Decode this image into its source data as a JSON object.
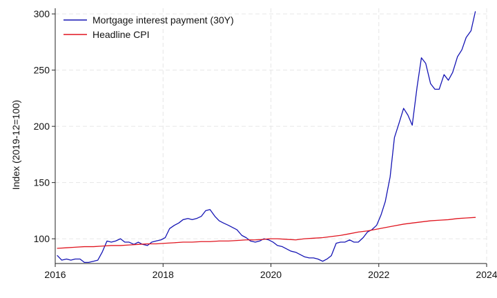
{
  "chart_data": {
    "type": "line",
    "title": "",
    "xlabel": "",
    "ylabel": "Index (2019-12=100)",
    "xlim": [
      2016.0,
      2024.0
    ],
    "ylim": [
      78,
      305
    ],
    "x_ticks": [
      2016,
      2018,
      2020,
      2022,
      2024
    ],
    "x_tick_labels": [
      "2016",
      "2018",
      "2020",
      "2022",
      "2024"
    ],
    "y_ticks": [
      100,
      150,
      200,
      250,
      300
    ],
    "y_tick_labels": [
      "100",
      "150",
      "200",
      "250",
      "300"
    ],
    "grid": true,
    "legend_position": "top-left",
    "series": [
      {
        "name": "Mortgage interest payment (30Y)",
        "color": "#1414b4",
        "x": [
          2016.04,
          2016.12,
          2016.21,
          2016.29,
          2016.37,
          2016.46,
          2016.54,
          2016.62,
          2016.71,
          2016.79,
          2016.87,
          2016.96,
          2017.04,
          2017.12,
          2017.21,
          2017.29,
          2017.37,
          2017.46,
          2017.54,
          2017.62,
          2017.71,
          2017.79,
          2017.87,
          2017.96,
          2018.04,
          2018.12,
          2018.21,
          2018.29,
          2018.37,
          2018.46,
          2018.54,
          2018.62,
          2018.71,
          2018.79,
          2018.87,
          2018.96,
          2019.04,
          2019.12,
          2019.21,
          2019.29,
          2019.37,
          2019.46,
          2019.54,
          2019.62,
          2019.71,
          2019.79,
          2019.87,
          2019.96,
          2020.04,
          2020.12,
          2020.21,
          2020.29,
          2020.37,
          2020.46,
          2020.54,
          2020.62,
          2020.71,
          2020.79,
          2020.87,
          2020.96,
          2021.04,
          2021.12,
          2021.21,
          2021.29,
          2021.37,
          2021.46,
          2021.54,
          2021.62,
          2021.71,
          2021.79,
          2021.87,
          2021.96,
          2022.04,
          2022.12,
          2022.21,
          2022.29,
          2022.37,
          2022.46,
          2022.54,
          2022.62,
          2022.71,
          2022.79,
          2022.87,
          2022.96,
          2023.04,
          2023.12,
          2023.21,
          2023.29,
          2023.37,
          2023.46,
          2023.54,
          2023.62,
          2023.71,
          2023.79
        ],
        "y": [
          85,
          81,
          82,
          81,
          82,
          82,
          79,
          79,
          80,
          81,
          88,
          98,
          97,
          98,
          100,
          97,
          97,
          95,
          97,
          95,
          94,
          97,
          98,
          99,
          101,
          109,
          112,
          114,
          117,
          118,
          117,
          118,
          120,
          125,
          126,
          120,
          116,
          114,
          112,
          110,
          108,
          103,
          101,
          98,
          97,
          98,
          100,
          99,
          97,
          94,
          93,
          91,
          89,
          88,
          86,
          84,
          83,
          83,
          82,
          80,
          82,
          85,
          96,
          97,
          97,
          99,
          97,
          97,
          101,
          106,
          108,
          112,
          121,
          133,
          155,
          190,
          202,
          216,
          210,
          201,
          235,
          261,
          256,
          238,
          233,
          233,
          246,
          241,
          248,
          262,
          268,
          279,
          285,
          302
        ]
      },
      {
        "name": "Headline CPI",
        "color": "#e0141e",
        "x": [
          2016.04,
          2016.21,
          2016.37,
          2016.54,
          2016.71,
          2016.87,
          2017.04,
          2017.21,
          2017.37,
          2017.54,
          2017.71,
          2017.87,
          2018.04,
          2018.21,
          2018.37,
          2018.54,
          2018.71,
          2018.87,
          2019.04,
          2019.21,
          2019.37,
          2019.54,
          2019.71,
          2019.87,
          2019.96,
          2020.12,
          2020.29,
          2020.46,
          2020.62,
          2020.79,
          2020.96,
          2021.12,
          2021.29,
          2021.46,
          2021.62,
          2021.79,
          2021.96,
          2022.12,
          2022.29,
          2022.46,
          2022.62,
          2022.79,
          2022.96,
          2023.12,
          2023.29,
          2023.46,
          2023.62,
          2023.79
        ],
        "y": [
          91.5,
          92,
          92.5,
          93,
          93,
          93.5,
          94,
          94,
          94.5,
          95,
          95.5,
          95.5,
          96,
          96.5,
          97,
          97,
          97.5,
          97.5,
          98,
          98,
          98.5,
          99,
          99,
          99.5,
          100,
          100,
          99.5,
          99,
          100,
          100.5,
          101,
          102,
          103,
          104.5,
          106,
          107,
          108.5,
          110,
          111.5,
          113,
          114,
          115,
          116,
          116.5,
          117,
          118,
          118.5,
          119
        ]
      }
    ]
  }
}
